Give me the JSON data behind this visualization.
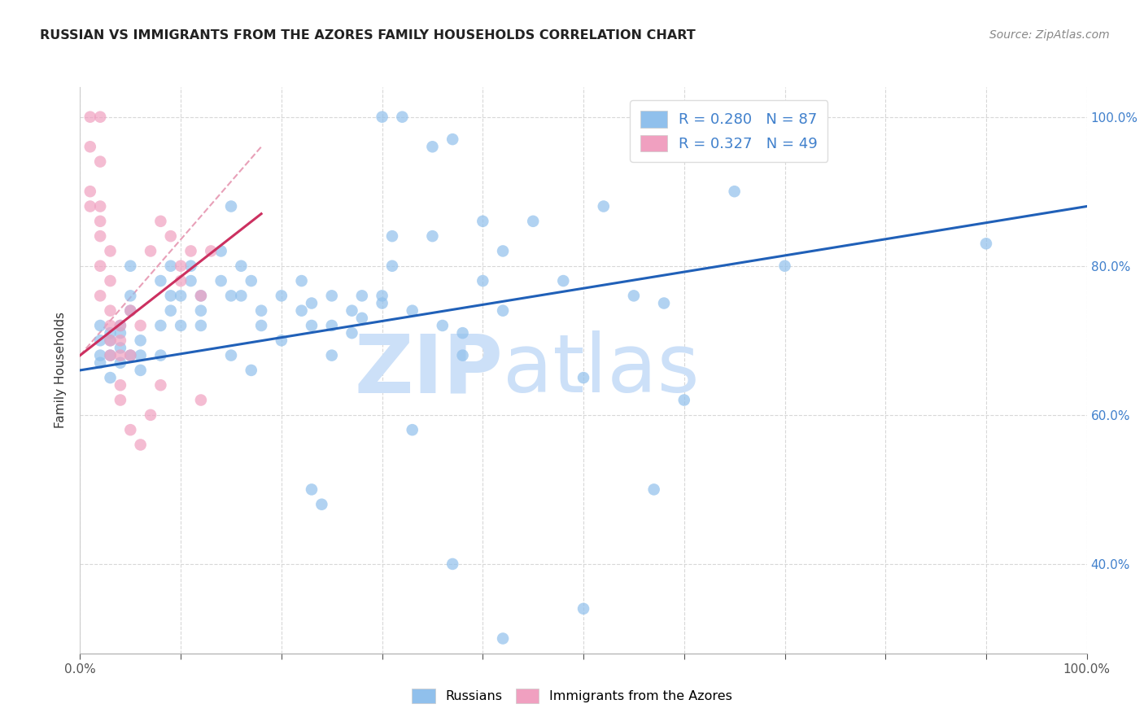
{
  "title": "RUSSIAN VS IMMIGRANTS FROM THE AZORES FAMILY HOUSEHOLDS CORRELATION CHART",
  "source": "Source: ZipAtlas.com",
  "ylabel": "Family Households",
  "xlim": [
    0.0,
    1.0
  ],
  "ylim": [
    0.28,
    1.04
  ],
  "watermark_zip": "ZIP",
  "watermark_atlas": "atlas",
  "blue_scatter": [
    [
      0.02,
      0.67
    ],
    [
      0.02,
      0.7
    ],
    [
      0.02,
      0.72
    ],
    [
      0.02,
      0.68
    ],
    [
      0.03,
      0.65
    ],
    [
      0.03,
      0.7
    ],
    [
      0.03,
      0.68
    ],
    [
      0.03,
      0.71
    ],
    [
      0.04,
      0.67
    ],
    [
      0.04,
      0.69
    ],
    [
      0.04,
      0.71
    ],
    [
      0.04,
      0.72
    ],
    [
      0.05,
      0.68
    ],
    [
      0.05,
      0.74
    ],
    [
      0.05,
      0.76
    ],
    [
      0.05,
      0.8
    ],
    [
      0.06,
      0.7
    ],
    [
      0.06,
      0.66
    ],
    [
      0.06,
      0.68
    ],
    [
      0.08,
      0.78
    ],
    [
      0.08,
      0.72
    ],
    [
      0.08,
      0.68
    ],
    [
      0.09,
      0.76
    ],
    [
      0.09,
      0.8
    ],
    [
      0.09,
      0.74
    ],
    [
      0.1,
      0.72
    ],
    [
      0.1,
      0.76
    ],
    [
      0.11,
      0.78
    ],
    [
      0.11,
      0.8
    ],
    [
      0.12,
      0.76
    ],
    [
      0.12,
      0.72
    ],
    [
      0.12,
      0.74
    ],
    [
      0.14,
      0.82
    ],
    [
      0.14,
      0.78
    ],
    [
      0.15,
      0.76
    ],
    [
      0.15,
      0.68
    ],
    [
      0.16,
      0.8
    ],
    [
      0.16,
      0.76
    ],
    [
      0.17,
      0.78
    ],
    [
      0.17,
      0.66
    ],
    [
      0.18,
      0.72
    ],
    [
      0.18,
      0.74
    ],
    [
      0.2,
      0.76
    ],
    [
      0.2,
      0.7
    ],
    [
      0.22,
      0.78
    ],
    [
      0.22,
      0.74
    ],
    [
      0.23,
      0.75
    ],
    [
      0.23,
      0.72
    ],
    [
      0.25,
      0.76
    ],
    [
      0.25,
      0.72
    ],
    [
      0.25,
      0.68
    ],
    [
      0.27,
      0.74
    ],
    [
      0.27,
      0.71
    ],
    [
      0.28,
      0.76
    ],
    [
      0.28,
      0.73
    ],
    [
      0.3,
      0.76
    ],
    [
      0.3,
      0.75
    ],
    [
      0.31,
      0.84
    ],
    [
      0.31,
      0.8
    ],
    [
      0.33,
      0.58
    ],
    [
      0.33,
      0.74
    ],
    [
      0.35,
      0.84
    ],
    [
      0.36,
      0.72
    ],
    [
      0.38,
      0.68
    ],
    [
      0.38,
      0.71
    ],
    [
      0.4,
      0.78
    ],
    [
      0.42,
      0.82
    ],
    [
      0.42,
      0.74
    ],
    [
      0.45,
      0.86
    ],
    [
      0.48,
      0.78
    ],
    [
      0.5,
      0.65
    ],
    [
      0.52,
      0.88
    ],
    [
      0.55,
      0.76
    ],
    [
      0.57,
      0.5
    ],
    [
      0.58,
      0.75
    ],
    [
      0.6,
      0.62
    ],
    [
      0.65,
      0.9
    ],
    [
      0.7,
      0.8
    ],
    [
      0.3,
      1.0
    ],
    [
      0.32,
      1.0
    ],
    [
      0.35,
      0.96
    ],
    [
      0.37,
      0.97
    ],
    [
      0.4,
      0.86
    ],
    [
      0.15,
      0.88
    ],
    [
      0.23,
      0.5
    ],
    [
      0.24,
      0.48
    ],
    [
      0.37,
      0.4
    ],
    [
      0.5,
      0.34
    ],
    [
      0.42,
      0.3
    ],
    [
      0.9,
      0.83
    ]
  ],
  "pink_scatter": [
    [
      0.01,
      0.96
    ],
    [
      0.01,
      0.9
    ],
    [
      0.01,
      0.88
    ],
    [
      0.02,
      0.94
    ],
    [
      0.02,
      0.88
    ],
    [
      0.02,
      0.86
    ],
    [
      0.02,
      0.84
    ],
    [
      0.02,
      0.8
    ],
    [
      0.02,
      0.76
    ],
    [
      0.03,
      0.82
    ],
    [
      0.03,
      0.78
    ],
    [
      0.03,
      0.74
    ],
    [
      0.03,
      0.72
    ],
    [
      0.03,
      0.7
    ],
    [
      0.03,
      0.68
    ],
    [
      0.04,
      0.72
    ],
    [
      0.04,
      0.7
    ],
    [
      0.04,
      0.68
    ],
    [
      0.04,
      0.64
    ],
    [
      0.04,
      0.62
    ],
    [
      0.05,
      0.74
    ],
    [
      0.05,
      0.68
    ],
    [
      0.06,
      0.72
    ],
    [
      0.07,
      0.82
    ],
    [
      0.08,
      0.86
    ],
    [
      0.09,
      0.84
    ],
    [
      0.1,
      0.8
    ],
    [
      0.1,
      0.78
    ],
    [
      0.11,
      0.82
    ],
    [
      0.12,
      0.76
    ],
    [
      0.13,
      0.82
    ],
    [
      0.05,
      0.58
    ],
    [
      0.06,
      0.56
    ],
    [
      0.07,
      0.6
    ],
    [
      0.08,
      0.64
    ],
    [
      0.12,
      0.62
    ],
    [
      0.01,
      1.0
    ],
    [
      0.02,
      1.0
    ]
  ],
  "blue_line_x": [
    0.0,
    1.0
  ],
  "blue_line_y": [
    0.66,
    0.88
  ],
  "pink_line_x": [
    0.0,
    0.18
  ],
  "pink_line_y": [
    0.68,
    0.87
  ],
  "background_color": "#ffffff",
  "grid_color": "#d8d8d8",
  "blue_color": "#90c0ec",
  "pink_color": "#f0a0c0",
  "blue_line_color": "#2060b8",
  "pink_line_color": "#cc3060",
  "pink_dash_color": "#e8a0b8",
  "title_color": "#222222",
  "source_color": "#888888",
  "watermark_color": "#cce0f8",
  "right_tick_color": "#4080cc",
  "legend_text_color": "#4080cc"
}
